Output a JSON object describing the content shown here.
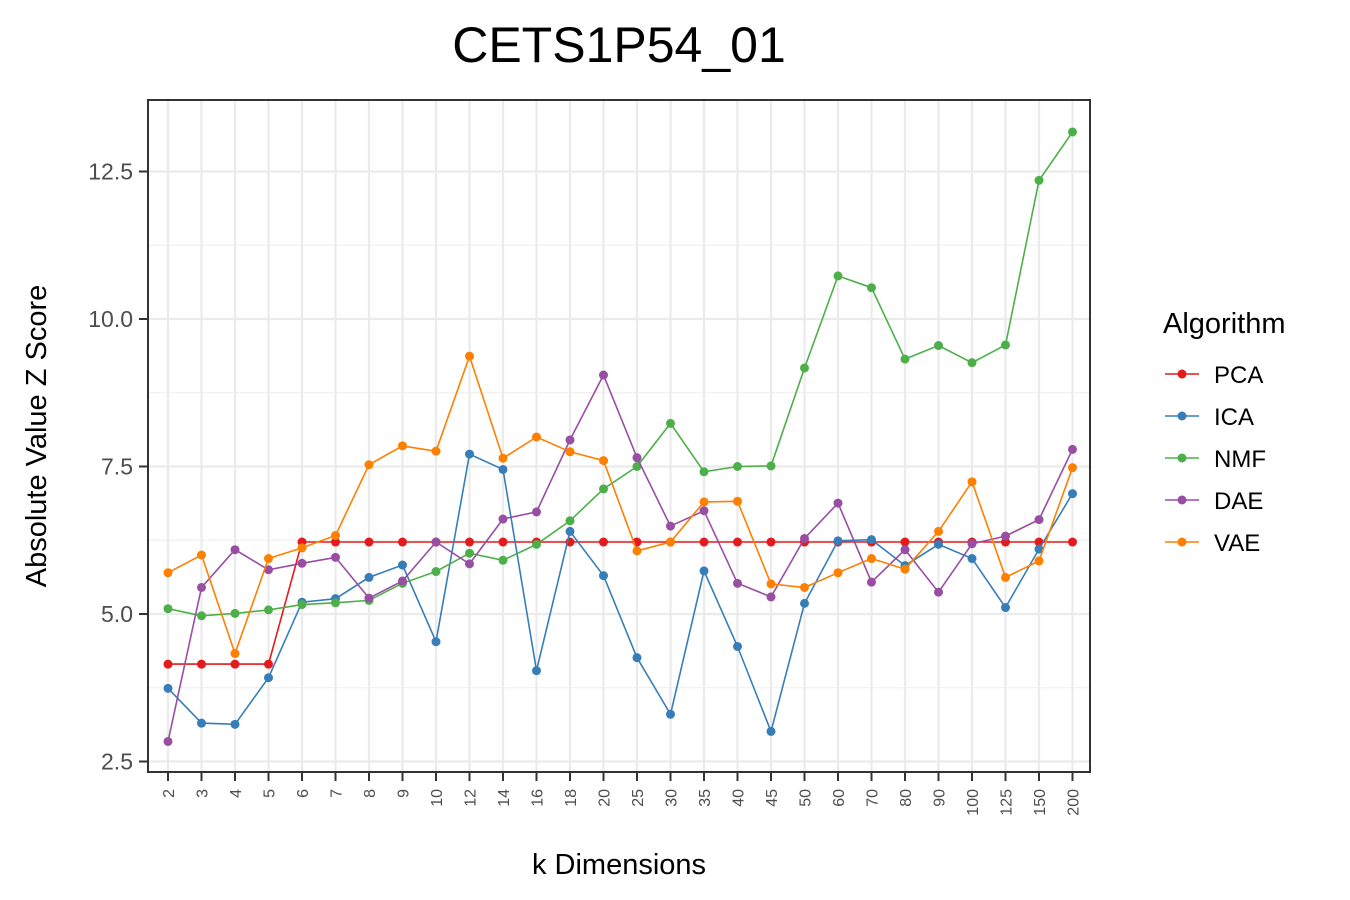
{
  "chart_data": {
    "type": "line",
    "title": "CETS1P54_01",
    "xlabel": "k Dimensions",
    "ylabel": "Absolute Value Z Score",
    "categories": [
      "2",
      "3",
      "4",
      "5",
      "6",
      "7",
      "8",
      "9",
      "10",
      "12",
      "14",
      "16",
      "18",
      "20",
      "25",
      "30",
      "35",
      "40",
      "45",
      "50",
      "60",
      "70",
      "80",
      "90",
      "100",
      "125",
      "150",
      "200"
    ],
    "ylim": [
      2.3,
      13.7
    ],
    "yticks": [
      2.5,
      5.0,
      7.5,
      10.0,
      12.5
    ],
    "ytick_labels": [
      "2.5",
      "5.0",
      "7.5",
      "10.0",
      "12.5"
    ],
    "grid": true,
    "legend": {
      "title": "Algorithm",
      "position": "right"
    },
    "series": [
      {
        "name": "PCA",
        "color": "#E41A1C",
        "values": [
          4.15,
          4.15,
          4.15,
          4.15,
          6.22,
          6.22,
          6.22,
          6.22,
          6.22,
          6.22,
          6.22,
          6.22,
          6.22,
          6.22,
          6.22,
          6.22,
          6.22,
          6.22,
          6.22,
          6.22,
          6.22,
          6.22,
          6.22,
          6.22,
          6.22,
          6.22,
          6.22,
          6.22
        ]
      },
      {
        "name": "ICA",
        "color": "#377EB8",
        "values": [
          3.74,
          3.15,
          3.13,
          3.92,
          5.2,
          5.26,
          5.62,
          5.83,
          4.53,
          7.71,
          7.45,
          4.04,
          6.4,
          5.65,
          4.26,
          3.3,
          5.73,
          4.45,
          3.01,
          5.18,
          6.24,
          6.26,
          5.82,
          6.18,
          5.94,
          5.11,
          6.1,
          7.04
        ]
      },
      {
        "name": "NMF",
        "color": "#4DAF4A",
        "values": [
          5.09,
          4.97,
          5.01,
          5.07,
          5.16,
          5.19,
          5.23,
          5.52,
          5.72,
          6.03,
          5.91,
          6.18,
          6.58,
          7.12,
          7.5,
          8.23,
          7.41,
          7.5,
          7.51,
          9.17,
          10.73,
          10.53,
          9.32,
          9.55,
          9.26,
          9.56,
          12.35,
          13.17
        ]
      },
      {
        "name": "DAE",
        "color": "#984EA3",
        "values": [
          2.84,
          5.45,
          6.09,
          5.75,
          5.86,
          5.96,
          5.27,
          5.56,
          6.22,
          5.85,
          6.61,
          6.73,
          7.95,
          9.05,
          7.65,
          6.49,
          6.75,
          5.52,
          5.29,
          6.28,
          6.88,
          5.54,
          6.09,
          5.37,
          6.19,
          6.32,
          6.6,
          7.79
        ]
      },
      {
        "name": "VAE",
        "color": "#FF7F00",
        "values": [
          5.7,
          6.0,
          4.33,
          5.94,
          6.12,
          6.33,
          7.53,
          7.85,
          7.76,
          9.37,
          7.64,
          8.0,
          7.75,
          7.6,
          6.07,
          6.22,
          6.9,
          6.91,
          5.51,
          5.45,
          5.7,
          5.94,
          5.76,
          6.4,
          7.24,
          5.62,
          5.9,
          7.48
        ]
      }
    ]
  }
}
